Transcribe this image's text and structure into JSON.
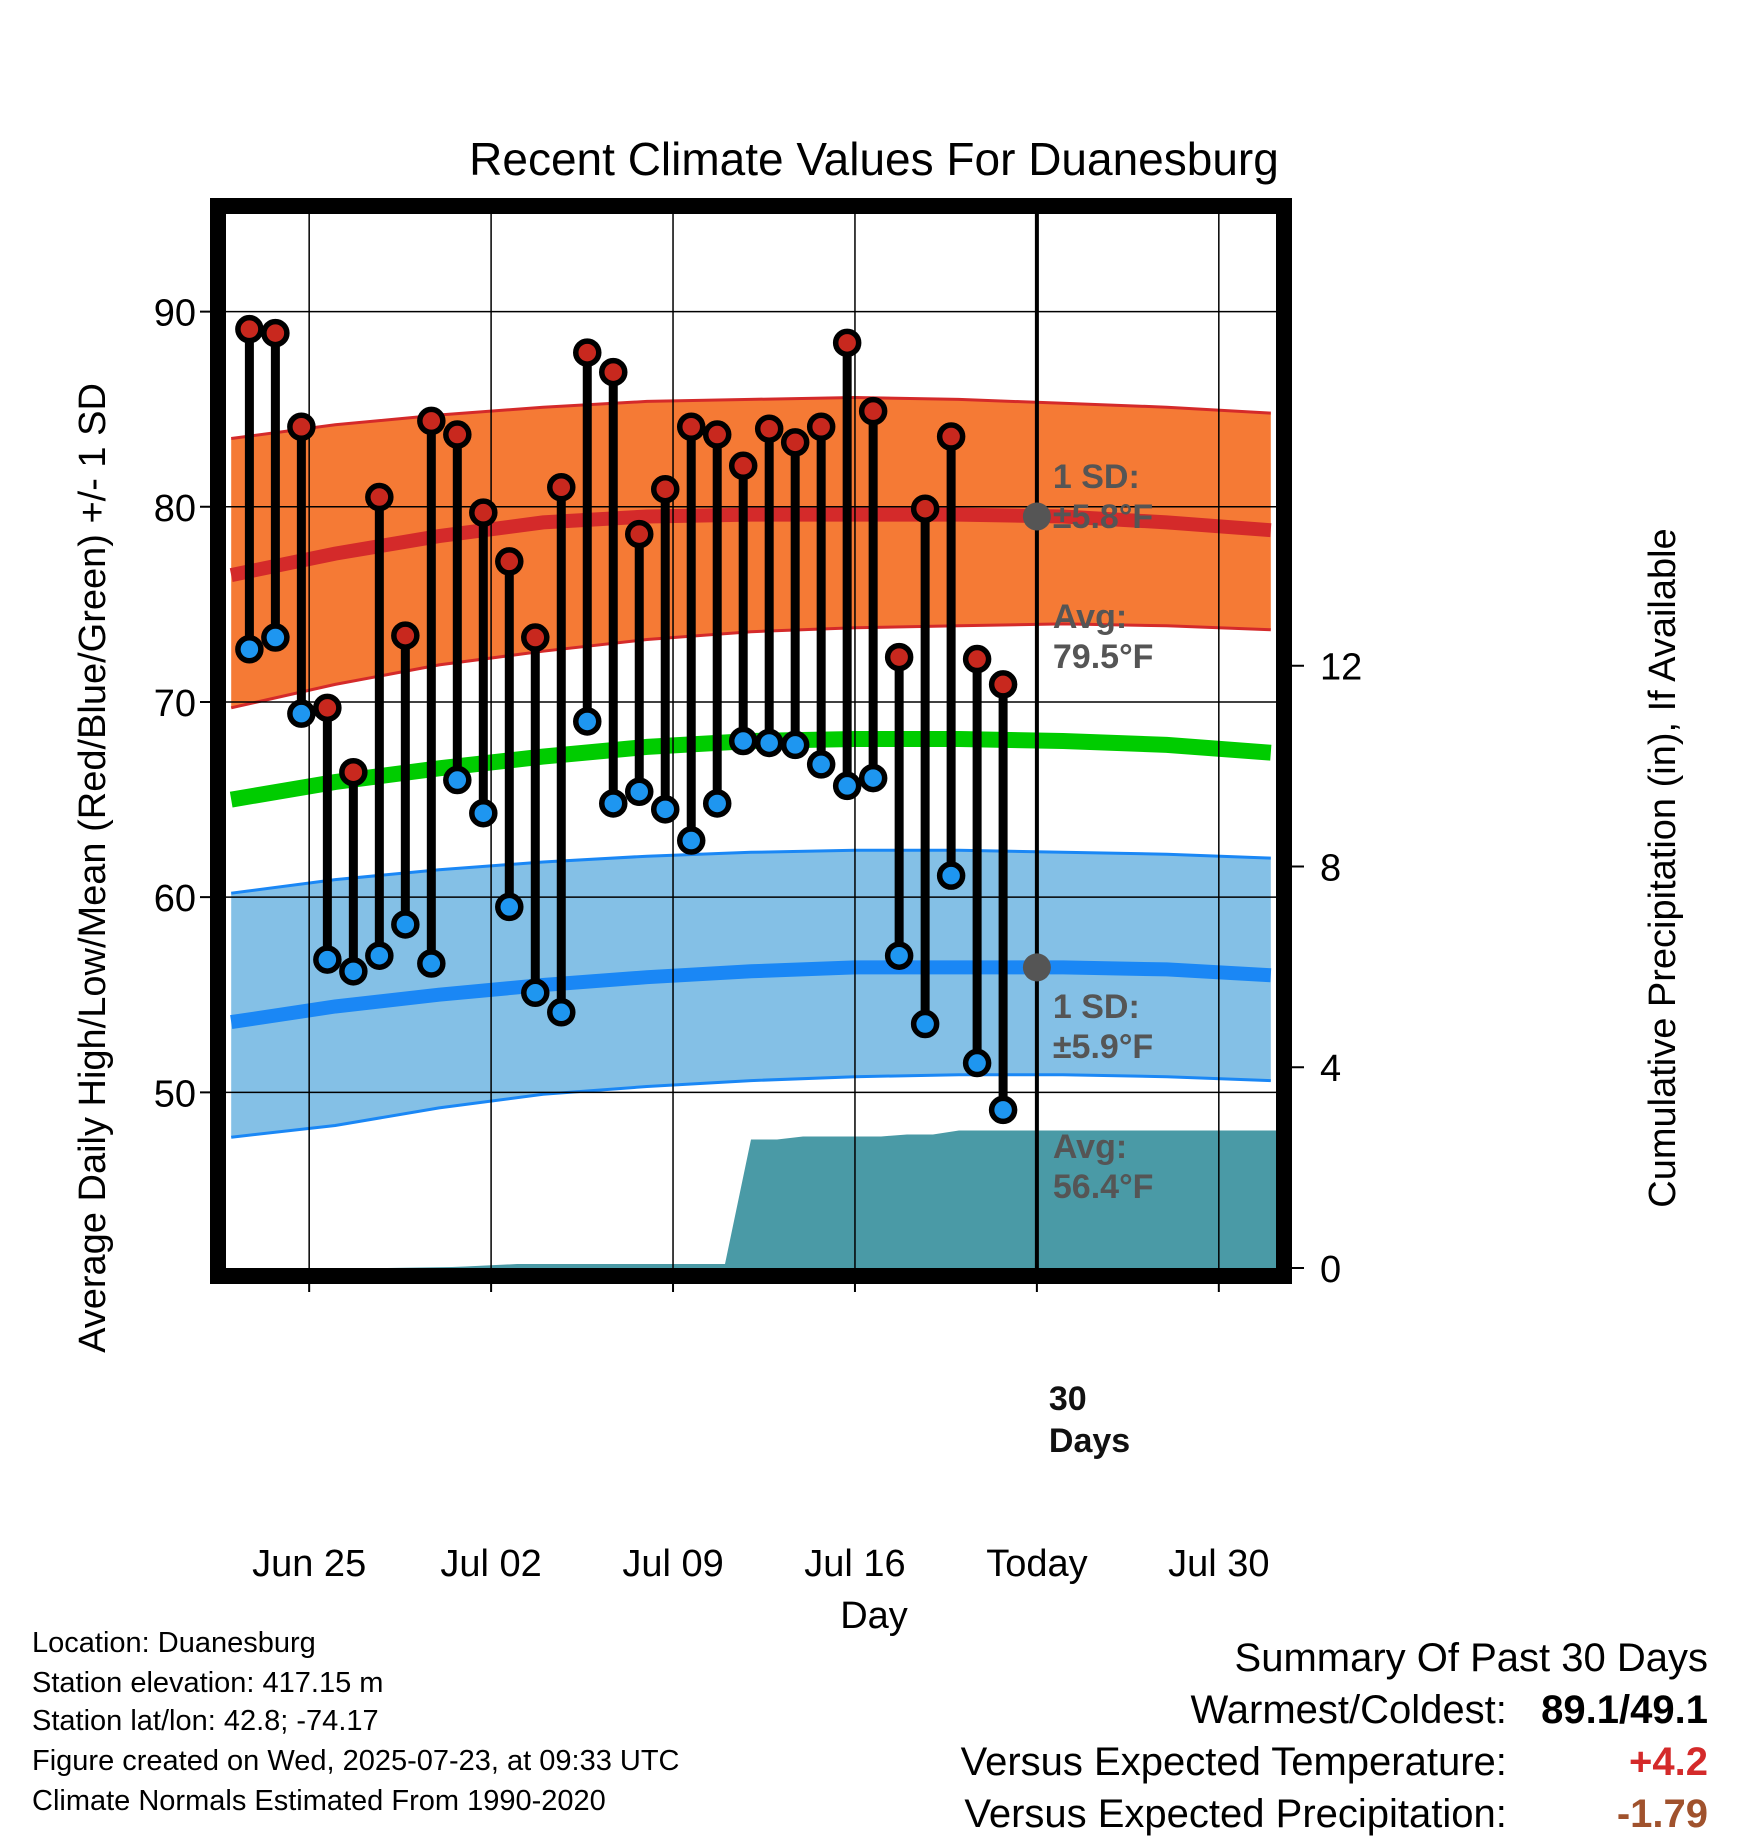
{
  "chart_data": {
    "type": "line",
    "title": "Recent Climate Values For Duanesburg",
    "xlabel": "Day",
    "ylabel_left": "Average Daily High/Low/Mean (Red/Blue/Green) +/- 1 SD",
    "ylabel_right": "Cumulative Precipitation (in), If Available",
    "x_ticks": [
      {
        "day": 3,
        "label": "Jun 25"
      },
      {
        "day": 10,
        "label": "Jul 02"
      },
      {
        "day": 17,
        "label": "Jul 09"
      },
      {
        "day": 24,
        "label": "Jul 16"
      },
      {
        "day": 31,
        "label": "Today"
      },
      {
        "day": 38,
        "label": "Jul 30"
      }
    ],
    "xlim": [
      -0.2,
      40.2
    ],
    "ylim_left": [
      41,
      95
    ],
    "y_ticks_left": [
      "50",
      "60",
      "70",
      "80",
      "90"
    ],
    "ylim_right": [
      0,
      21
    ],
    "y_ticks_right": [
      "0",
      "4",
      "8",
      "12"
    ],
    "today_day": 31,
    "grid": true,
    "normals": {
      "day": [
        0,
        4,
        8,
        12,
        16,
        20,
        24,
        28,
        32,
        36,
        40
      ],
      "high_avg": [
        76.5,
        77.6,
        78.5,
        79.2,
        79.5,
        79.6,
        79.6,
        79.6,
        79.5,
        79.2,
        78.8
      ],
      "high_sd_upper": [
        83.5,
        84.2,
        84.7,
        85.1,
        85.4,
        85.5,
        85.6,
        85.5,
        85.3,
        85.1,
        84.8
      ],
      "high_sd_lower": [
        69.7,
        70.9,
        71.9,
        72.6,
        73.2,
        73.6,
        73.8,
        73.9,
        74.0,
        73.9,
        73.7
      ],
      "mean_avg": [
        65.0,
        65.9,
        66.6,
        67.2,
        67.7,
        68.0,
        68.1,
        68.1,
        68.0,
        67.8,
        67.4
      ],
      "low_avg": [
        53.6,
        54.4,
        55.0,
        55.5,
        55.9,
        56.2,
        56.4,
        56.4,
        56.4,
        56.3,
        56.0
      ],
      "low_sd_upper": [
        60.2,
        60.9,
        61.4,
        61.8,
        62.1,
        62.3,
        62.4,
        62.4,
        62.3,
        62.2,
        62.0
      ],
      "low_sd_lower": [
        47.7,
        48.3,
        49.2,
        49.9,
        50.3,
        50.6,
        50.8,
        50.9,
        50.9,
        50.8,
        50.6
      ]
    },
    "series": [
      {
        "name": "Observed High",
        "day": [
          0.7,
          1.7,
          2.7,
          3.7,
          4.7,
          5.7,
          6.7,
          7.7,
          8.7,
          9.7,
          10.7,
          11.7,
          12.7,
          13.7,
          14.7,
          15.7,
          16.7,
          17.7,
          18.7,
          19.7,
          20.7,
          21.7,
          22.7,
          23.7,
          24.7,
          25.7,
          26.7,
          27.7,
          28.7,
          29.7
        ],
        "values": [
          89.1,
          88.9,
          84.1,
          69.7,
          66.4,
          80.5,
          73.4,
          84.4,
          83.7,
          79.7,
          77.2,
          73.3,
          81.0,
          87.9,
          86.9,
          78.6,
          80.9,
          84.1,
          83.7,
          82.1,
          84.0,
          83.3,
          84.1,
          88.4,
          84.9,
          72.3,
          79.9,
          83.6,
          72.2,
          70.9
        ]
      },
      {
        "name": "Observed Low",
        "day": [
          0.7,
          1.7,
          2.7,
          3.7,
          4.7,
          5.7,
          6.7,
          7.7,
          8.7,
          9.7,
          10.7,
          11.7,
          12.7,
          13.7,
          14.7,
          15.7,
          16.7,
          17.7,
          18.7,
          19.7,
          20.7,
          21.7,
          22.7,
          23.7,
          24.7,
          25.7,
          26.7,
          27.7,
          28.7,
          29.7
        ],
        "values": [
          72.7,
          73.3,
          69.4,
          56.8,
          56.2,
          57.0,
          58.6,
          56.6,
          66.0,
          64.3,
          59.5,
          55.1,
          54.1,
          69.0,
          64.8,
          65.4,
          64.5,
          62.9,
          64.8,
          68.0,
          67.9,
          67.8,
          66.8,
          65.7,
          66.1,
          57.0,
          53.5,
          61.1,
          51.5,
          49.1
        ]
      }
    ],
    "precip_cumulative": {
      "day": [
        0,
        6,
        8.5,
        9,
        11,
        19,
        20,
        21,
        22,
        25,
        26,
        27,
        28,
        40.2
      ],
      "values": [
        0.0,
        0.0,
        0.02,
        0.03,
        0.08,
        0.08,
        2.56,
        2.56,
        2.62,
        2.62,
        2.66,
        2.66,
        2.74,
        2.74
      ]
    },
    "annotations": {
      "high_sd_label": "1 SD:",
      "high_sd_value": "±5.8°F",
      "high_avg_label": "Avg:",
      "high_avg_value": "79.5°F",
      "low_sd_label": "1 SD:",
      "low_sd_value": "±5.9°F",
      "low_avg_label": "Avg:",
      "low_avg_value": "56.4°F",
      "days_num": "30",
      "days_word": "Days"
    },
    "colors": {
      "high_band": "#f57a35",
      "high_line": "#d42a2a",
      "low_band": "#84c0e6",
      "low_line": "#1a87f5",
      "mean_line": "#00cc00",
      "precip_fill": "#4a9aa6",
      "high_marker": "#c8281e",
      "low_marker": "#1e96f0",
      "avg_dot": "#555555"
    }
  },
  "info": {
    "location": "Location: Duanesburg",
    "elevation": "Station elevation: 417.15 m",
    "latlon": "Station lat/lon: 42.8; -74.17",
    "created": "Figure created on Wed, 2025-07-23, at 09:33 UTC",
    "normals": "Climate Normals Estimated From 1990-2020"
  },
  "summary": {
    "heading": "Summary Of Past 30 Days",
    "warmest_coldest_label": "Warmest/Coldest:",
    "warmest_coldest_value": "89.1/49.1",
    "temp_label": "Versus Expected Temperature:",
    "temp_value": "+4.2",
    "temp_color": "#d42a2a",
    "precip_label": "Versus Expected Precipitation:",
    "precip_value": "-1.79",
    "precip_color": "#a0522d"
  }
}
